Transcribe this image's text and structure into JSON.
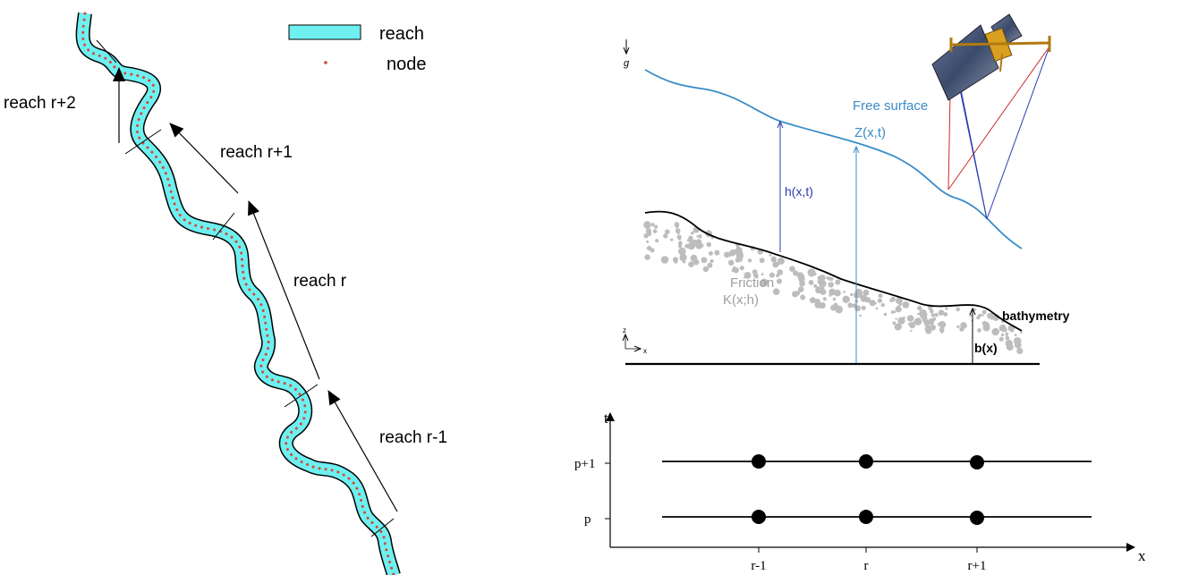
{
  "river_panel": {
    "legend": {
      "reach_label": "reach",
      "node_label": "node"
    },
    "reach_labels": [
      "reach r+2",
      "reach r+1",
      "reach r",
      "reach r-1"
    ],
    "colors": {
      "reach_fill": "#6ef0f0",
      "node": "#d04a3a"
    }
  },
  "hydraulic_panel": {
    "gravity_label": "g",
    "free_surface_label": "Free surface",
    "elevation_label": "Z(x,t)",
    "depth_label": "h(x,t)",
    "friction_label": "Friction",
    "friction_formula": "K(x;h)",
    "bathymetry_label": "bathymetry",
    "bed_label": "b(x)",
    "axis_z": "z",
    "axis_x": "x",
    "colors": {
      "surface": "#3a8cc8",
      "depth_arrow": "#2a3ab0",
      "friction_text": "#a0a0a0"
    },
    "satellite_icon": "satellite-icon"
  },
  "grid_panel": {
    "t_label": "t",
    "x_label": "x",
    "time_levels": [
      "p+1",
      "p"
    ],
    "space_ticks": [
      "r-1",
      "r",
      "r+1"
    ]
  }
}
